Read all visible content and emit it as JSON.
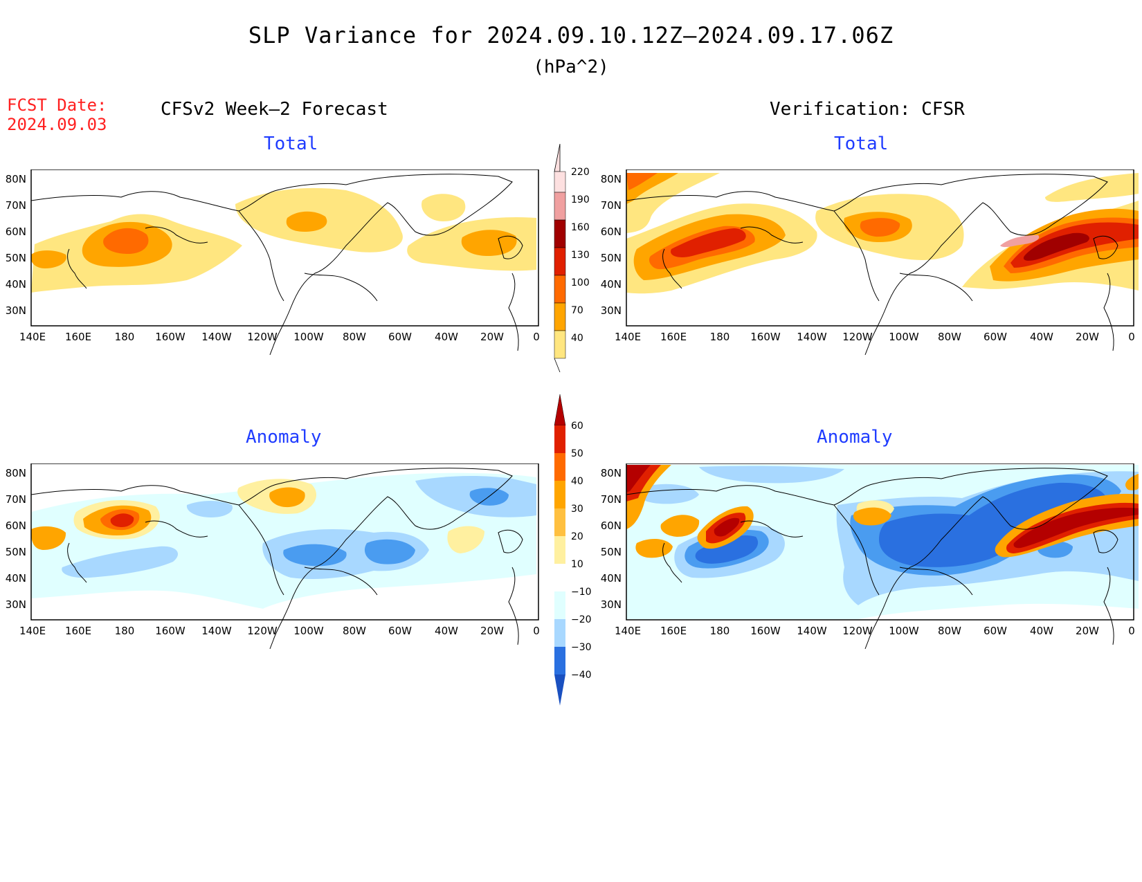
{
  "header": {
    "title": "SLP Variance for 2024.09.10.12Z–2024.09.17.06Z",
    "units": "(hPa^2)",
    "fcst_label": "FCST Date:",
    "fcst_date": "2024.09.03"
  },
  "columns": {
    "left": "CFSv2 Week–2 Forecast",
    "right": "Verification: CFSR"
  },
  "panels": {
    "forecast_total": "Total",
    "verif_total": "Total",
    "forecast_anomaly": "Anomaly",
    "verif_anomaly": "Anomaly"
  },
  "axes": {
    "lon_labels": [
      "140E",
      "160E",
      "180",
      "160W",
      "140W",
      "120W",
      "100W",
      "80W",
      "60W",
      "40W",
      "20W",
      "0"
    ],
    "lat_labels": [
      "80N",
      "70N",
      "60N",
      "50N",
      "40N",
      "30N"
    ],
    "lon_range": [
      140,
      360
    ],
    "lat_range": [
      25,
      85
    ]
  },
  "colorbars": {
    "total": {
      "levels": [
        "40",
        "70",
        "100",
        "130",
        "160",
        "190",
        "220"
      ],
      "colors": [
        "#ffe680",
        "#ffa500",
        "#ff6a00",
        "#e02000",
        "#a00000",
        "#f0a0a0",
        "#fde0e0"
      ]
    },
    "anomaly": {
      "levels": [
        "60",
        "50",
        "40",
        "30",
        "20",
        "10",
        "−10",
        "−20",
        "−30",
        "−40"
      ],
      "colors_top_down": [
        "#b40000",
        "#e02000",
        "#ff6a00",
        "#ffa500",
        "#ffc040",
        "#fff0a0",
        "#ffffff",
        "#e0ffff",
        "#a8d8ff",
        "#4a9cf0",
        "#2a70e0",
        "#1a50c0"
      ]
    }
  }
}
